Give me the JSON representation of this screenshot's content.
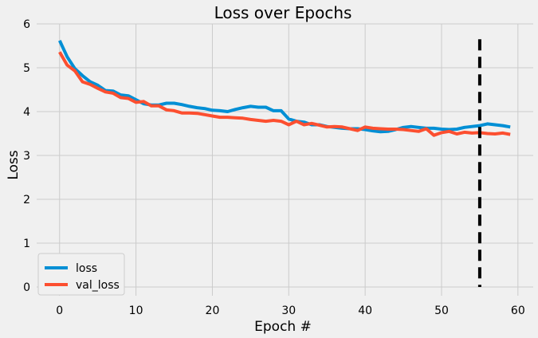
{
  "chart_data": {
    "type": "line",
    "title": "Loss over Epochs",
    "xlabel": "Epoch #",
    "ylabel": "Loss",
    "xlim": [
      -3,
      62
    ],
    "ylim": [
      -0.2,
      6.0
    ],
    "xticks": [
      0,
      10,
      20,
      30,
      40,
      50,
      60
    ],
    "yticks": [
      0,
      1,
      2,
      3,
      4,
      5,
      6
    ],
    "grid": true,
    "legend_position": "lower-left",
    "x": [
      0,
      1,
      2,
      3,
      4,
      5,
      6,
      7,
      8,
      9,
      10,
      11,
      12,
      13,
      14,
      15,
      16,
      17,
      18,
      19,
      20,
      21,
      22,
      23,
      24,
      25,
      26,
      27,
      28,
      29,
      30,
      31,
      32,
      33,
      34,
      35,
      36,
      37,
      38,
      39,
      40,
      41,
      42,
      43,
      44,
      45,
      46,
      47,
      48,
      49,
      50,
      51,
      52,
      53,
      54,
      55,
      56,
      57,
      58,
      59
    ],
    "series": [
      {
        "name": "loss",
        "color": "#008fd5",
        "values": [
          5.62,
          5.25,
          4.98,
          4.82,
          4.68,
          4.6,
          4.48,
          4.47,
          4.38,
          4.36,
          4.27,
          4.18,
          4.15,
          4.15,
          4.19,
          4.19,
          4.16,
          4.12,
          4.09,
          4.07,
          4.03,
          4.02,
          4.0,
          4.05,
          4.09,
          4.12,
          4.1,
          4.1,
          4.02,
          4.02,
          3.83,
          3.78,
          3.76,
          3.7,
          3.7,
          3.66,
          3.64,
          3.62,
          3.61,
          3.61,
          3.59,
          3.56,
          3.54,
          3.55,
          3.59,
          3.64,
          3.66,
          3.64,
          3.62,
          3.62,
          3.6,
          3.59,
          3.6,
          3.64,
          3.66,
          3.68,
          3.72,
          3.7,
          3.68,
          3.65
        ]
      },
      {
        "name": "val_loss",
        "color": "#fc4f30",
        "values": [
          5.36,
          5.06,
          4.93,
          4.68,
          4.62,
          4.53,
          4.45,
          4.42,
          4.32,
          4.3,
          4.21,
          4.23,
          4.13,
          4.13,
          4.04,
          4.02,
          3.97,
          3.97,
          3.96,
          3.93,
          3.9,
          3.87,
          3.87,
          3.86,
          3.85,
          3.82,
          3.8,
          3.78,
          3.8,
          3.78,
          3.7,
          3.78,
          3.7,
          3.73,
          3.69,
          3.65,
          3.66,
          3.65,
          3.61,
          3.57,
          3.65,
          3.62,
          3.61,
          3.6,
          3.6,
          3.59,
          3.57,
          3.55,
          3.61,
          3.46,
          3.52,
          3.55,
          3.49,
          3.53,
          3.51,
          3.52,
          3.5,
          3.49,
          3.51,
          3.48
        ]
      }
    ],
    "marker": {
      "x": 55,
      "y_from": 0.0,
      "y_to": 5.65,
      "color": "#000000",
      "style": "dashed"
    }
  }
}
